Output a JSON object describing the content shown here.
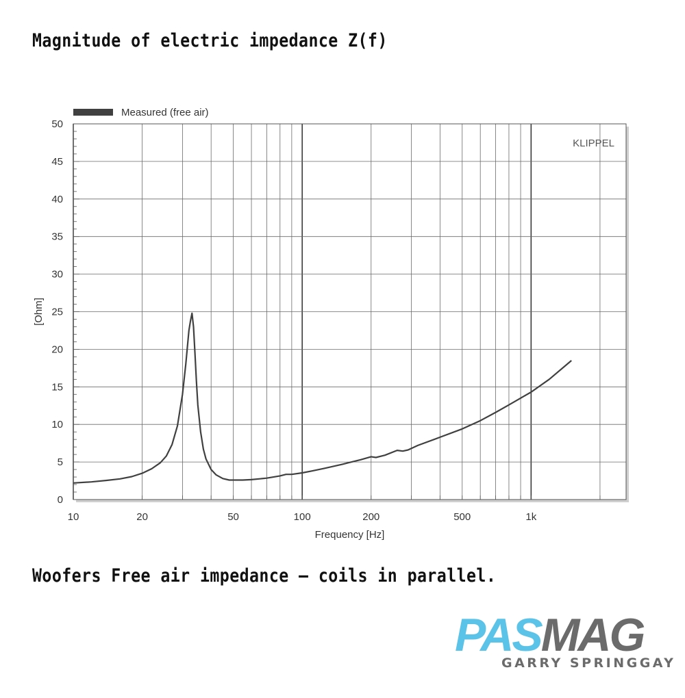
{
  "page": {
    "title": "Magnitude of electric impedance Z(f)",
    "caption": "Woofers Free air impedance – coils in parallel."
  },
  "logo": {
    "part1": "PAS",
    "part2": "MAG",
    "subtitle": "GARRY SPRINGGAY",
    "colors": {
      "part1": "#5bc2e8",
      "part2": "#6b6b6b"
    }
  },
  "chart_data": {
    "type": "line",
    "title": "",
    "xlabel": "Frequency [Hz]",
    "ylabel": "[Ohm]",
    "watermark": "KLIPPEL",
    "xscale": "log",
    "xlim": [
      10,
      2600
    ],
    "ylim": [
      0,
      50
    ],
    "grid": true,
    "legend_position": "top-left",
    "xticks": [
      10,
      20,
      50,
      100,
      200,
      500,
      1000
    ],
    "xtick_labels": [
      "10",
      "20",
      "50",
      "100",
      "200",
      "500",
      "1k"
    ],
    "yticks": [
      0,
      5,
      10,
      15,
      20,
      25,
      30,
      35,
      40,
      45,
      50
    ],
    "series": [
      {
        "name": "Measured (free air)",
        "color": "#404040",
        "x": [
          10,
          12,
          14,
          16,
          18,
          20,
          22,
          24,
          25.5,
          27,
          28.5,
          30,
          31,
          32,
          32.5,
          33,
          33.5,
          34,
          34.5,
          35,
          36,
          37,
          38,
          40,
          42,
          45,
          48,
          50,
          55,
          60,
          70,
          80,
          85,
          90,
          100,
          110,
          125,
          150,
          180,
          200,
          210,
          230,
          260,
          275,
          290,
          320,
          400,
          500,
          600,
          700,
          800,
          900,
          1000,
          1200,
          1500
        ],
        "y": [
          2.2,
          2.35,
          2.55,
          2.75,
          3.05,
          3.5,
          4.1,
          4.9,
          5.8,
          7.3,
          9.8,
          14.0,
          18.0,
          22.5,
          23.8,
          24.8,
          23.0,
          19.5,
          15.8,
          12.6,
          9.0,
          6.7,
          5.4,
          4.0,
          3.3,
          2.8,
          2.6,
          2.6,
          2.6,
          2.65,
          2.85,
          3.15,
          3.35,
          3.35,
          3.55,
          3.8,
          4.15,
          4.7,
          5.3,
          5.7,
          5.6,
          5.9,
          6.55,
          6.45,
          6.6,
          7.2,
          8.3,
          9.4,
          10.5,
          11.6,
          12.6,
          13.5,
          14.3,
          16.0,
          18.5
        ]
      }
    ]
  }
}
